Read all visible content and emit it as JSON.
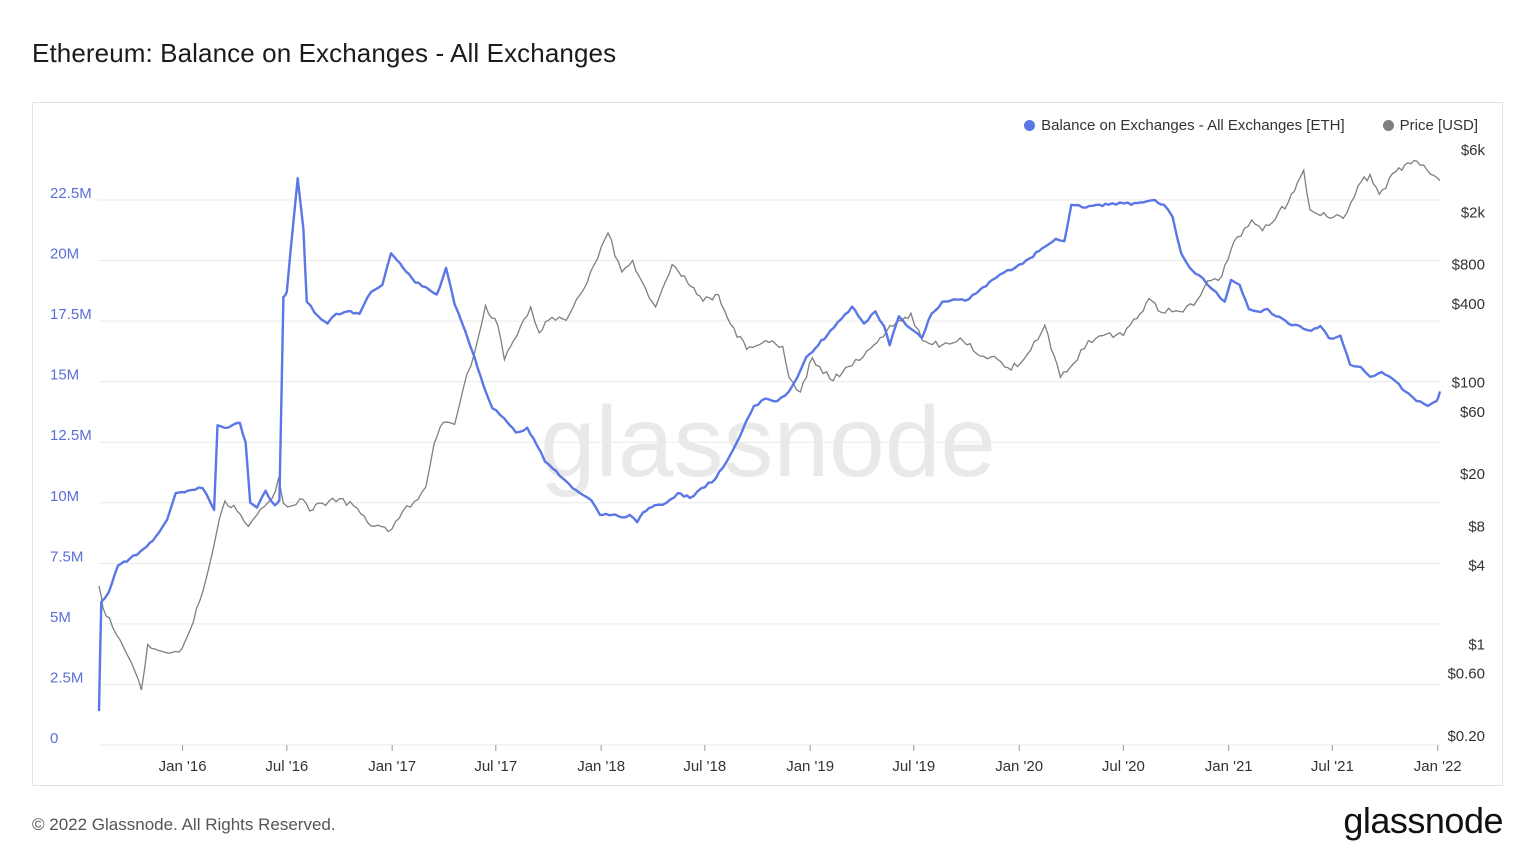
{
  "title": "Ethereum: Balance on Exchanges - All Exchanges",
  "watermark": "glassnode",
  "footer": {
    "copyright": "© 2022 Glassnode. All Rights Reserved.",
    "logo": "glassnode"
  },
  "colors": {
    "balance": "#5b77e6",
    "price": "#7f7f7f",
    "grid": "#e9e9e9",
    "left_axis_text": "#5b6fd6",
    "right_axis_text": "#333333"
  },
  "chart_data": {
    "type": "line",
    "title": "Ethereum: Balance on Exchanges - All Exchanges",
    "xlabel": "",
    "ylabel": "",
    "x_ticks": [
      "Jan '16",
      "Jul '16",
      "Jan '17",
      "Jul '17",
      "Jan '18",
      "Jul '18",
      "Jan '19",
      "Jul '19",
      "Jan '20",
      "Jul '20",
      "Jan '21",
      "Jul '21",
      "Jan '22"
    ],
    "left_axis": {
      "ylim": [
        0,
        22500000
      ],
      "ticks": [
        {
          "value": 0,
          "label": "0"
        },
        {
          "value": 2500000,
          "label": "2.5M"
        },
        {
          "value": 5000000,
          "label": "5M"
        },
        {
          "value": 7500000,
          "label": "7.5M"
        },
        {
          "value": 10000000,
          "label": "10M"
        },
        {
          "value": 12500000,
          "label": "12.5M"
        },
        {
          "value": 15000000,
          "label": "15M"
        },
        {
          "value": 17500000,
          "label": "17.5M"
        },
        {
          "value": 20000000,
          "label": "20M"
        },
        {
          "value": 22500000,
          "label": "22.5M"
        }
      ]
    },
    "right_axis": {
      "scale": "log",
      "ticks": [
        {
          "value": 0.2,
          "label": "$0.20"
        },
        {
          "value": 0.6,
          "label": "$0.60"
        },
        {
          "value": 1,
          "label": "$1"
        },
        {
          "value": 4,
          "label": "$4"
        },
        {
          "value": 8,
          "label": "$8"
        },
        {
          "value": 20,
          "label": "$20"
        },
        {
          "value": 60,
          "label": "$60"
        },
        {
          "value": 100,
          "label": "$100"
        },
        {
          "value": 400,
          "label": "$400"
        },
        {
          "value": 800,
          "label": "$800"
        },
        {
          "value": 2000,
          "label": "$2k"
        },
        {
          "value": 6000,
          "label": "$6k"
        }
      ]
    },
    "legend_position": "top-right",
    "grid": true,
    "series": [
      {
        "name": "Balance on Exchanges - All Exchanges [ETH]",
        "axis": "left",
        "points": [
          [
            "2015-08-08",
            1400000
          ],
          [
            "2015-08-12",
            5900000
          ],
          [
            "2015-08-25",
            6300000
          ],
          [
            "2015-09-10",
            7400000
          ],
          [
            "2015-10-01",
            7700000
          ],
          [
            "2015-10-25",
            8100000
          ],
          [
            "2015-11-15",
            8600000
          ],
          [
            "2015-12-05",
            9300000
          ],
          [
            "2015-12-20",
            10400000
          ],
          [
            "2016-01-10",
            10500000
          ],
          [
            "2016-02-05",
            10600000
          ],
          [
            "2016-02-25",
            9700000
          ],
          [
            "2016-03-02",
            13200000
          ],
          [
            "2016-03-20",
            13100000
          ],
          [
            "2016-04-10",
            13300000
          ],
          [
            "2016-04-20",
            12500000
          ],
          [
            "2016-04-28",
            10000000
          ],
          [
            "2016-05-10",
            9800000
          ],
          [
            "2016-05-25",
            10500000
          ],
          [
            "2016-06-10",
            9900000
          ],
          [
            "2016-06-18",
            10100000
          ],
          [
            "2016-06-25",
            18500000
          ],
          [
            "2016-07-01",
            18700000
          ],
          [
            "2016-07-20",
            23400000
          ],
          [
            "2016-07-30",
            21300000
          ],
          [
            "2016-08-05",
            18300000
          ],
          [
            "2016-08-25",
            17700000
          ],
          [
            "2016-09-10",
            17400000
          ],
          [
            "2016-09-25",
            17800000
          ],
          [
            "2016-10-15",
            17900000
          ],
          [
            "2016-11-05",
            17800000
          ],
          [
            "2016-11-25",
            18700000
          ],
          [
            "2016-12-15",
            19000000
          ],
          [
            "2016-12-30",
            20300000
          ],
          [
            "2017-01-20",
            19700000
          ],
          [
            "2017-02-10",
            19100000
          ],
          [
            "2017-03-01",
            18900000
          ],
          [
            "2017-03-20",
            18600000
          ],
          [
            "2017-04-05",
            19700000
          ],
          [
            "2017-04-20",
            18200000
          ],
          [
            "2017-05-10",
            17000000
          ],
          [
            "2017-05-25",
            16000000
          ],
          [
            "2017-06-10",
            14800000
          ],
          [
            "2017-06-25",
            13900000
          ],
          [
            "2017-07-15",
            13500000
          ],
          [
            "2017-08-05",
            12900000
          ],
          [
            "2017-08-25",
            13100000
          ],
          [
            "2017-09-10",
            12400000
          ],
          [
            "2017-09-25",
            11700000
          ],
          [
            "2017-10-15",
            11300000
          ],
          [
            "2017-11-05",
            10800000
          ],
          [
            "2017-11-25",
            10400000
          ],
          [
            "2017-12-15",
            10100000
          ],
          [
            "2017-12-30",
            9500000
          ],
          [
            "2018-01-20",
            9500000
          ],
          [
            "2018-02-05",
            9400000
          ],
          [
            "2018-02-20",
            9500000
          ],
          [
            "2018-03-05",
            9200000
          ],
          [
            "2018-03-15",
            9600000
          ],
          [
            "2018-04-05",
            9900000
          ],
          [
            "2018-04-25",
            10000000
          ],
          [
            "2018-05-15",
            10400000
          ],
          [
            "2018-06-05",
            10200000
          ],
          [
            "2018-06-25",
            10600000
          ],
          [
            "2018-07-20",
            11000000
          ],
          [
            "2018-08-15",
            12000000
          ],
          [
            "2018-09-05",
            13000000
          ],
          [
            "2018-09-25",
            14000000
          ],
          [
            "2018-10-15",
            14300000
          ],
          [
            "2018-11-05",
            14200000
          ],
          [
            "2018-11-25",
            14600000
          ],
          [
            "2018-12-10",
            15200000
          ],
          [
            "2018-12-25",
            16000000
          ],
          [
            "2019-01-15",
            16500000
          ],
          [
            "2019-02-05",
            17100000
          ],
          [
            "2019-02-25",
            17600000
          ],
          [
            "2019-03-15",
            18100000
          ],
          [
            "2019-04-05",
            17400000
          ],
          [
            "2019-04-25",
            17900000
          ],
          [
            "2019-05-10",
            17300000
          ],
          [
            "2019-05-20",
            16500000
          ],
          [
            "2019-06-05",
            17700000
          ],
          [
            "2019-06-25",
            17200000
          ],
          [
            "2019-07-15",
            16800000
          ],
          [
            "2019-08-01",
            17800000
          ],
          [
            "2019-08-20",
            18300000
          ],
          [
            "2019-09-10",
            18400000
          ],
          [
            "2019-10-05",
            18400000
          ],
          [
            "2019-10-25",
            18800000
          ],
          [
            "2019-11-15",
            19200000
          ],
          [
            "2019-12-05",
            19500000
          ],
          [
            "2019-12-25",
            19700000
          ],
          [
            "2020-01-20",
            20100000
          ],
          [
            "2020-02-10",
            20500000
          ],
          [
            "2020-03-05",
            20900000
          ],
          [
            "2020-03-20",
            20800000
          ],
          [
            "2020-04-01",
            22300000
          ],
          [
            "2020-04-20",
            22200000
          ],
          [
            "2020-05-15",
            22300000
          ],
          [
            "2020-06-05",
            22300000
          ],
          [
            "2020-06-25",
            22400000
          ],
          [
            "2020-07-15",
            22300000
          ],
          [
            "2020-08-05",
            22400000
          ],
          [
            "2020-08-25",
            22500000
          ],
          [
            "2020-09-10",
            22300000
          ],
          [
            "2020-09-25",
            21800000
          ],
          [
            "2020-10-10",
            20300000
          ],
          [
            "2020-10-25",
            19700000
          ],
          [
            "2020-11-10",
            19400000
          ],
          [
            "2020-11-25",
            19000000
          ],
          [
            "2020-12-10",
            18700000
          ],
          [
            "2020-12-25",
            18300000
          ],
          [
            "2021-01-05",
            19200000
          ],
          [
            "2021-01-20",
            19000000
          ],
          [
            "2021-02-05",
            18000000
          ],
          [
            "2021-02-20",
            17900000
          ],
          [
            "2021-03-10",
            18000000
          ],
          [
            "2021-03-25",
            17700000
          ],
          [
            "2021-04-15",
            17400000
          ],
          [
            "2021-05-05",
            17300000
          ],
          [
            "2021-05-25",
            17100000
          ],
          [
            "2021-06-10",
            17300000
          ],
          [
            "2021-06-25",
            16800000
          ],
          [
            "2021-07-15",
            16900000
          ],
          [
            "2021-08-01",
            15700000
          ],
          [
            "2021-08-20",
            15600000
          ],
          [
            "2021-09-05",
            15200000
          ],
          [
            "2021-09-25",
            15400000
          ],
          [
            "2021-10-15",
            15100000
          ],
          [
            "2021-11-05",
            14600000
          ],
          [
            "2021-11-25",
            14200000
          ],
          [
            "2021-12-15",
            14000000
          ],
          [
            "2021-12-30",
            14200000
          ],
          [
            "2022-01-05",
            14600000
          ]
        ]
      },
      {
        "name": "Price [USD]",
        "axis": "right",
        "points": [
          [
            "2015-08-08",
            2.8
          ],
          [
            "2015-08-15",
            1.9
          ],
          [
            "2015-09-01",
            1.35
          ],
          [
            "2015-09-20",
            0.95
          ],
          [
            "2015-10-10",
            0.62
          ],
          [
            "2015-10-21",
            0.45
          ],
          [
            "2015-11-01",
            1.0
          ],
          [
            "2015-11-20",
            0.9
          ],
          [
            "2015-12-10",
            0.86
          ],
          [
            "2015-12-31",
            0.93
          ],
          [
            "2016-01-20",
            1.5
          ],
          [
            "2016-02-05",
            2.5
          ],
          [
            "2016-02-20",
            4.6
          ],
          [
            "2016-03-05",
            9.0
          ],
          [
            "2016-03-15",
            12.5
          ],
          [
            "2016-04-05",
            10.5
          ],
          [
            "2016-04-25",
            8.0
          ],
          [
            "2016-05-10",
            9.8
          ],
          [
            "2016-06-05",
            13.0
          ],
          [
            "2016-06-17",
            19.0
          ],
          [
            "2016-06-25",
            12.0
          ],
          [
            "2016-07-10",
            11.5
          ],
          [
            "2016-07-24",
            13.0
          ],
          [
            "2016-08-10",
            10.5
          ],
          [
            "2016-09-01",
            12.0
          ],
          [
            "2016-10-01",
            13.0
          ],
          [
            "2016-11-01",
            11.0
          ],
          [
            "2016-12-01",
            8.0
          ],
          [
            "2016-12-25",
            7.3
          ],
          [
            "2017-01-20",
            10.5
          ],
          [
            "2017-02-15",
            12.8
          ],
          [
            "2017-03-01",
            16.0
          ],
          [
            "2017-03-15",
            34.0
          ],
          [
            "2017-04-01",
            50.0
          ],
          [
            "2017-04-20",
            48.0
          ],
          [
            "2017-05-05",
            90.0
          ],
          [
            "2017-05-25",
            170.0
          ],
          [
            "2017-06-13",
            390.0
          ],
          [
            "2017-07-05",
            270.0
          ],
          [
            "2017-07-16",
            150.0
          ],
          [
            "2017-08-01",
            210.0
          ],
          [
            "2017-08-31",
            380.0
          ],
          [
            "2017-09-15",
            240.0
          ],
          [
            "2017-10-01",
            300.0
          ],
          [
            "2017-11-01",
            300.0
          ],
          [
            "2017-11-25",
            470.0
          ],
          [
            "2017-12-20",
            800.0
          ],
          [
            "2018-01-13",
            1390.0
          ],
          [
            "2018-02-06",
            700.0
          ],
          [
            "2018-02-25",
            860.0
          ],
          [
            "2018-03-20",
            520.0
          ],
          [
            "2018-04-06",
            380.0
          ],
          [
            "2018-05-05",
            800.0
          ],
          [
            "2018-06-01",
            580.0
          ],
          [
            "2018-06-28",
            420.0
          ],
          [
            "2018-07-25",
            470.0
          ],
          [
            "2018-08-15",
            280.0
          ],
          [
            "2018-09-12",
            180.0
          ],
          [
            "2018-10-15",
            210.0
          ],
          [
            "2018-11-14",
            190.0
          ],
          [
            "2018-11-25",
            110.0
          ],
          [
            "2018-12-15",
            85.0
          ],
          [
            "2019-01-05",
            155.0
          ],
          [
            "2019-02-05",
            106.0
          ],
          [
            "2019-03-15",
            135.0
          ],
          [
            "2019-04-10",
            175.0
          ],
          [
            "2019-05-15",
            250.0
          ],
          [
            "2019-06-26",
            340.0
          ],
          [
            "2019-07-16",
            210.0
          ],
          [
            "2019-08-20",
            195.0
          ],
          [
            "2019-09-20",
            220.0
          ],
          [
            "2019-10-25",
            160.0
          ],
          [
            "2019-11-25",
            150.0
          ],
          [
            "2019-12-18",
            125.0
          ],
          [
            "2020-01-15",
            165.0
          ],
          [
            "2020-02-15",
            275.0
          ],
          [
            "2020-03-13",
            110.0
          ],
          [
            "2020-04-05",
            140.0
          ],
          [
            "2020-05-01",
            210.0
          ],
          [
            "2020-06-01",
            235.0
          ],
          [
            "2020-07-01",
            230.0
          ],
          [
            "2020-07-25",
            310.0
          ],
          [
            "2020-08-15",
            440.0
          ],
          [
            "2020-09-05",
            345.0
          ],
          [
            "2020-10-01",
            355.0
          ],
          [
            "2020-11-01",
            390.0
          ],
          [
            "2020-11-25",
            600.0
          ],
          [
            "2020-12-20",
            650.0
          ],
          [
            "2021-01-10",
            1200.0
          ],
          [
            "2021-02-10",
            1750.0
          ],
          [
            "2021-03-01",
            1450.0
          ],
          [
            "2021-04-15",
            2400.0
          ],
          [
            "2021-05-12",
            4200.0
          ],
          [
            "2021-05-23",
            2100.0
          ],
          [
            "2021-06-22",
            1850.0
          ],
          [
            "2021-07-20",
            1800.0
          ],
          [
            "2021-08-15",
            3200.0
          ],
          [
            "2021-09-05",
            3900.0
          ],
          [
            "2021-09-21",
            2750.0
          ],
          [
            "2021-10-20",
            4100.0
          ],
          [
            "2021-11-10",
            4800.0
          ],
          [
            "2021-12-01",
            4600.0
          ],
          [
            "2021-12-20",
            3900.0
          ],
          [
            "2022-01-05",
            3500.0
          ]
        ]
      }
    ]
  }
}
